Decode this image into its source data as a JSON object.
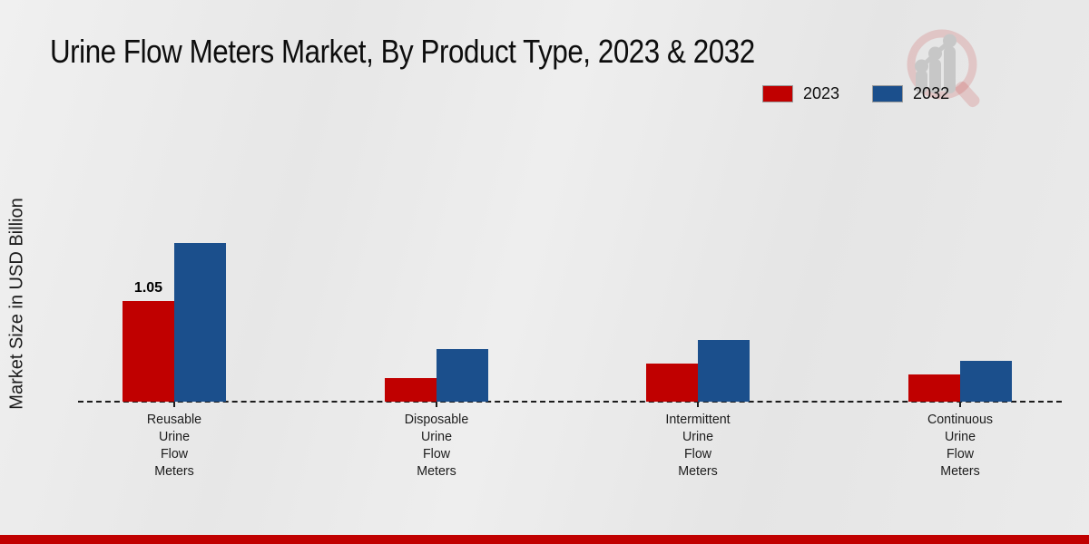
{
  "title": "Urine Flow Meters Market, By Product Type, 2023 & 2032",
  "y_axis_label": "Market Size in USD Billion",
  "legend": [
    {
      "label": "2023",
      "color": "#c00000"
    },
    {
      "label": "2032",
      "color": "#1b4f8c"
    }
  ],
  "colors": {
    "series_2023": "#c00000",
    "series_2032": "#1b4f8c",
    "footer_strip": "#c00000",
    "baseline": "#1c1c1c"
  },
  "chart_data": {
    "type": "bar",
    "title": "Urine Flow Meters Market, By Product Type, 2023 & 2032",
    "ylabel": "Market Size in USD Billion",
    "xlabel": "",
    "categories": [
      "Reusable Urine Flow Meters",
      "Disposable Urine Flow Meters",
      "Intermittent Urine Flow Meters",
      "Continuous Urine Flow Meters"
    ],
    "series": [
      {
        "name": "2023",
        "color": "#c00000",
        "values": [
          1.05,
          0.25,
          0.4,
          0.28
        ],
        "labels": [
          "1.05",
          null,
          null,
          null
        ]
      },
      {
        "name": "2032",
        "color": "#1b4f8c",
        "values": [
          1.66,
          0.55,
          0.64,
          0.43
        ],
        "labels": [
          null,
          null,
          null,
          null
        ]
      }
    ],
    "ylim": [
      0,
      1.9
    ],
    "grid": false,
    "axis_style": "dashed-baseline-only",
    "legend_position": "top-right"
  }
}
